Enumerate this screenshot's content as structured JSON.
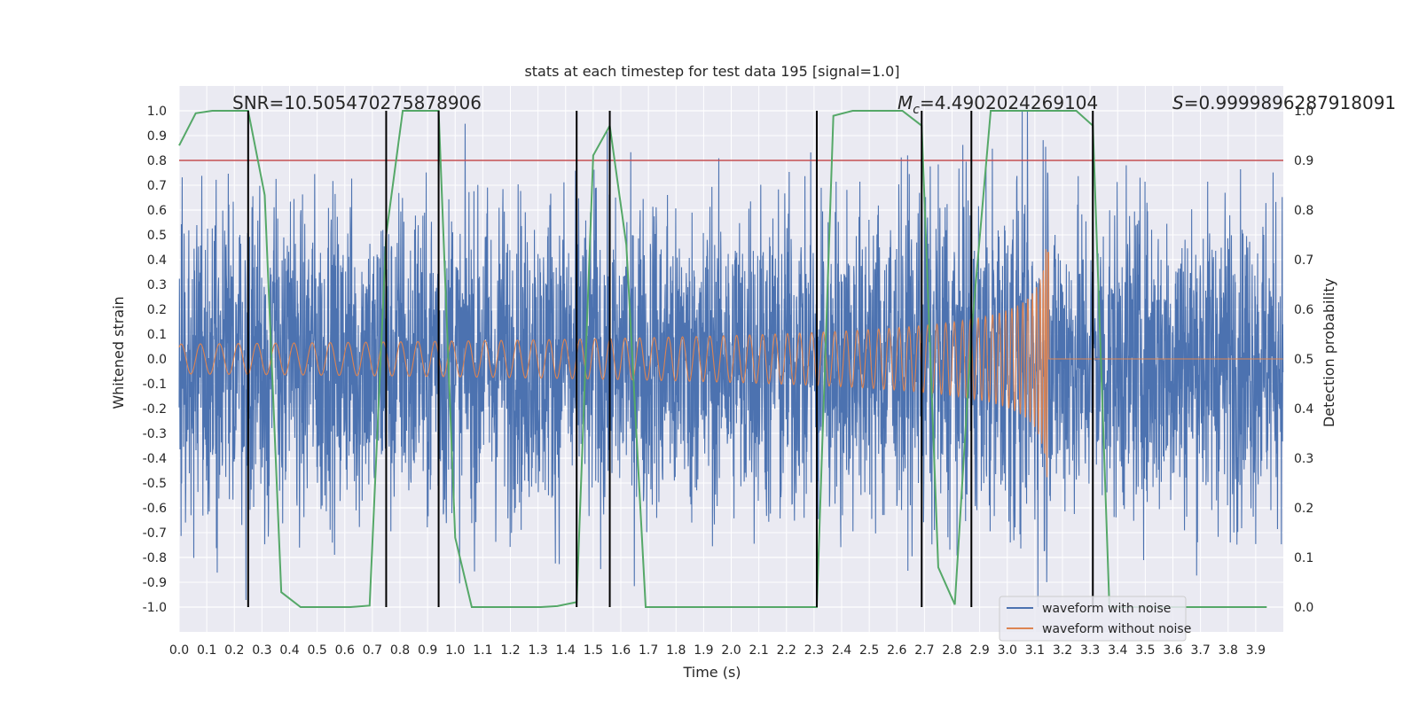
{
  "chart_data": {
    "type": "line",
    "title": "stats at each timestep for test data 195 [signal=1.0]",
    "xlabel": "Time (s)",
    "ylabel": "Whitened strain",
    "y2label": "Detection probability",
    "xlim": [
      0.0,
      4.0
    ],
    "ylim": [
      -1.1,
      1.1
    ],
    "y2lim": [
      -0.05,
      1.05
    ],
    "xticks": [
      "0.0",
      "0.1",
      "0.2",
      "0.3",
      "0.4",
      "0.5",
      "0.6",
      "0.7",
      "0.8",
      "0.9",
      "1.0",
      "1.1",
      "1.2",
      "1.3",
      "1.4",
      "1.5",
      "1.6",
      "1.7",
      "1.8",
      "1.9",
      "2.0",
      "2.1",
      "2.2",
      "2.3",
      "2.4",
      "2.5",
      "2.6",
      "2.7",
      "2.8",
      "2.9",
      "3.0",
      "3.1",
      "3.2",
      "3.3",
      "3.4",
      "3.5",
      "3.6",
      "3.7",
      "3.8",
      "3.9"
    ],
    "yticks": [
      "1.0",
      "0.9",
      "0.8",
      "0.7",
      "0.6",
      "0.5",
      "0.4",
      "0.3",
      "0.2",
      "0.1",
      "0.0",
      "-0.1",
      "-0.2",
      "-0.3",
      "-0.4",
      "-0.5",
      "-0.6",
      "-0.7",
      "-0.8",
      "-0.9",
      "-1.0"
    ],
    "y2ticks": [
      "1.0",
      "0.9",
      "0.8",
      "0.7",
      "0.6",
      "0.5",
      "0.4",
      "0.3",
      "0.2",
      "0.1",
      "0.0"
    ],
    "threshold": {
      "value": 0.9,
      "axis": "y2",
      "color": "#c44e52"
    },
    "vlines": [
      0.25,
      0.75,
      0.94,
      1.44,
      1.56,
      2.31,
      2.69,
      2.87,
      3.31
    ],
    "noise_amplitude": 0.75,
    "merger_time": 3.15,
    "probability": {
      "x": [
        0.0,
        0.06,
        0.12,
        0.19,
        0.25,
        0.31,
        0.37,
        0.44,
        0.5,
        0.56,
        0.62,
        0.69,
        0.75,
        0.81,
        0.87,
        0.94,
        1.0,
        1.06,
        1.12,
        1.19,
        1.25,
        1.31,
        1.37,
        1.44,
        1.5,
        1.56,
        1.62,
        1.69,
        1.75,
        1.81,
        1.87,
        1.94,
        2.0,
        2.06,
        2.12,
        2.19,
        2.25,
        2.31,
        2.37,
        2.44,
        2.5,
        2.56,
        2.62,
        2.69,
        2.75,
        2.81,
        2.87,
        2.94,
        3.0,
        3.06,
        3.12,
        3.19,
        3.25,
        3.31,
        3.37,
        3.44,
        3.5,
        3.56,
        3.62,
        3.69,
        3.75,
        3.81,
        3.87,
        3.94
      ],
      "y": [
        0.93,
        0.995,
        1.0,
        1.0,
        1.0,
        0.83,
        0.03,
        0.0,
        0.0,
        0.0,
        0.0,
        0.003,
        0.75,
        1.0,
        1.0,
        1.0,
        0.14,
        0.0,
        0.0,
        0.0,
        0.0,
        0.0,
        0.002,
        0.01,
        0.91,
        0.97,
        0.73,
        0.0,
        0.0,
        0.0,
        0.0,
        0.0,
        0.0,
        0.0,
        0.0,
        0.0,
        0.0,
        0.0,
        0.99,
        1.0,
        1.0,
        1.0,
        1.0,
        0.97,
        0.08,
        0.005,
        0.55,
        1.0,
        1.0,
        1.0,
        1.0,
        1.0,
        1.0,
        0.97,
        0.0,
        0.0,
        0.0,
        0.0,
        0.0,
        0.0,
        0.0,
        0.0,
        0.0,
        0.0
      ]
    },
    "series": [
      {
        "name": "waveform with noise",
        "color": "#4c72b0"
      },
      {
        "name": "waveform without noise",
        "color": "#dd8452"
      },
      {
        "name": "detection probability",
        "color": "#55a868"
      }
    ],
    "annotations": {
      "snr": "SNR=10.505470275878906",
      "mc_symbol": "M",
      "mc_sub": "c",
      "mc_value": "=4.4902024269104",
      "s_symbol": "S",
      "s_value": "=0.9999896287918091"
    },
    "legend_position": "lower-right",
    "style": {
      "grid": true,
      "background": "#eaeaf2",
      "vline_color": "#000000"
    }
  }
}
